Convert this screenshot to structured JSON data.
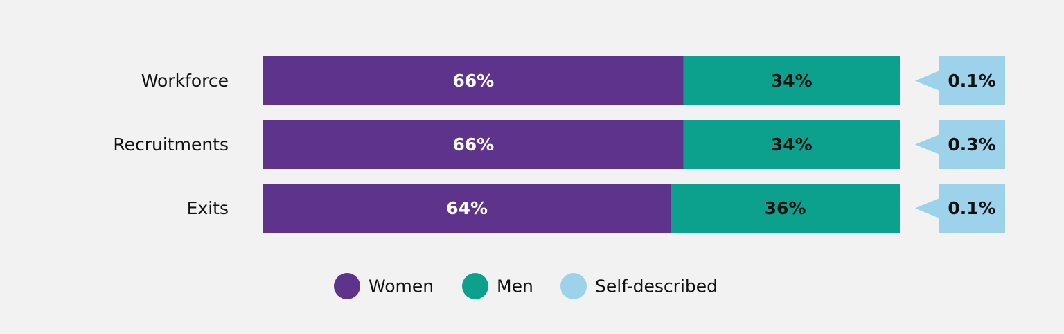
{
  "chart_data": {
    "type": "bar",
    "orientation": "horizontal",
    "stacked": true,
    "categories": [
      "Workforce",
      "Recruitments",
      "Exits"
    ],
    "series": [
      {
        "name": "Women",
        "values": [
          66,
          66,
          64
        ],
        "labels": [
          "66%",
          "66%",
          "64%"
        ],
        "color": "#5e338c",
        "label_color": "#ffffff"
      },
      {
        "name": "Men",
        "values": [
          34,
          34,
          36
        ],
        "labels": [
          "34%",
          "34%",
          "36%"
        ],
        "color": "#0ba18c",
        "label_color": "#111111"
      },
      {
        "name": "Self-described",
        "values": [
          0.1,
          0.3,
          0.1
        ],
        "labels": [
          "0.1%",
          "0.3%",
          "0.1%"
        ],
        "color": "#9dd3ea",
        "label_color": "#111111",
        "display": "callout"
      }
    ],
    "legend": {
      "position": "bottom",
      "items": [
        "Women",
        "Men",
        "Self-described"
      ]
    },
    "grid": false
  }
}
